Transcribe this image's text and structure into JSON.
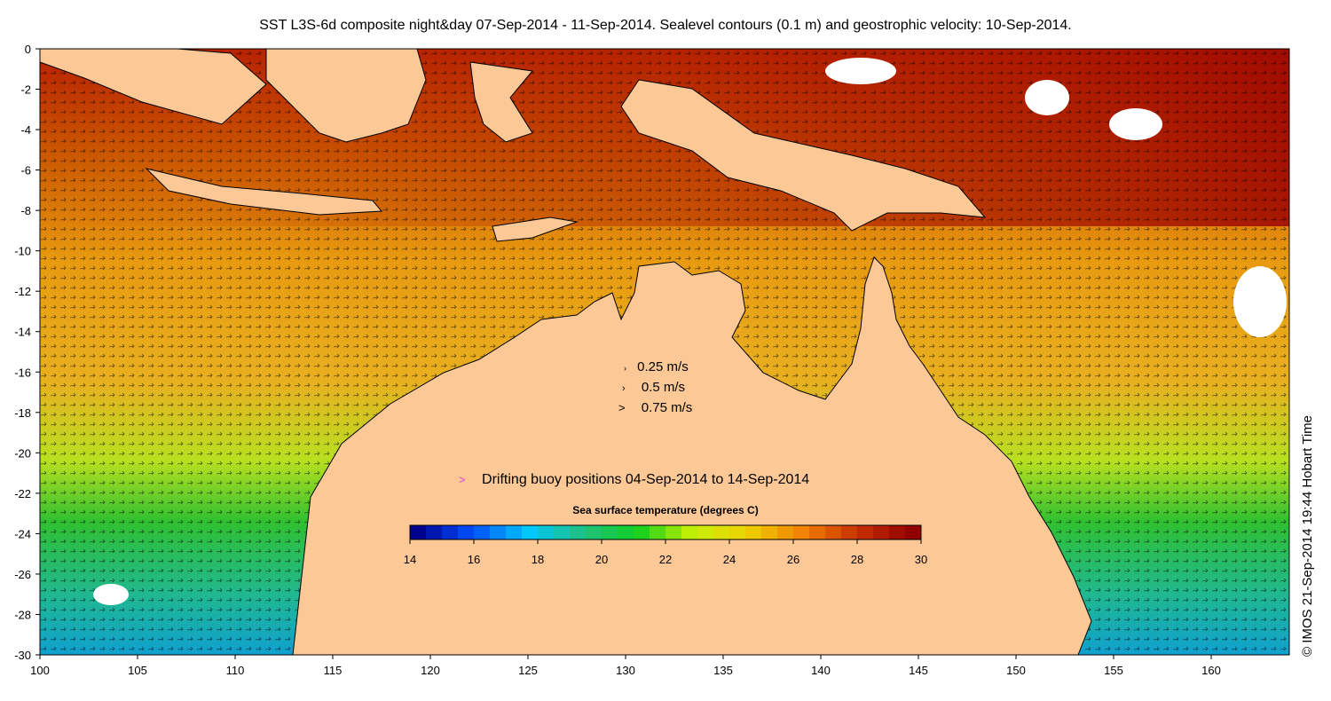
{
  "title": "SST L3S-6d composite night&day 07-Sep-2014 - 11-Sep-2014. Sealevel contours (0.1 m) and geostrophic velocity: 10-Sep-2014.",
  "credit": "© IMOS 21-Sep-2014 19:44 Hobart Time",
  "axes": {
    "x_ticks": [
      "100",
      "105",
      "110",
      "115",
      "120",
      "125",
      "130",
      "135",
      "140",
      "145",
      "150",
      "155",
      "160"
    ],
    "y_ticks": [
      "0",
      "-2",
      "-4",
      "-6",
      "-8",
      "-10",
      "-12",
      "-14",
      "-16",
      "-18",
      "-20",
      "-22",
      "-24",
      "-26",
      "-28",
      "-30"
    ],
    "lon_range": [
      100,
      164
    ],
    "lat_range": [
      -30,
      0
    ]
  },
  "velocity_legend": [
    {
      "label": "0.25 m/s",
      "symbol": "›"
    },
    {
      "label": "0.5 m/s",
      "symbol": "›"
    },
    {
      "label": "0.75 m/s",
      "symbol": ">"
    }
  ],
  "buoy_legend": {
    "symbol": ">",
    "label": "Drifting buoy positions 04-Sep-2014 to 14-Sep-2014",
    "color": "#e040e0"
  },
  "colorbar": {
    "title": "Sea surface temperature (degrees C)",
    "ticks": [
      "14",
      "16",
      "18",
      "20",
      "22",
      "24",
      "26",
      "28",
      "30"
    ],
    "range": [
      14,
      30
    ],
    "colors": [
      "#00008f",
      "#0050ff",
      "#00c8ff",
      "#20c080",
      "#10d020",
      "#c8f000",
      "#f0d000",
      "#f08000",
      "#c83000",
      "#900000"
    ]
  },
  "colors": {
    "land": "#fbc896",
    "warm": "#c84a00",
    "hot": "#a01000",
    "mid": "#e88a10",
    "cool": "#40c040",
    "cold": "#20b0e0"
  }
}
